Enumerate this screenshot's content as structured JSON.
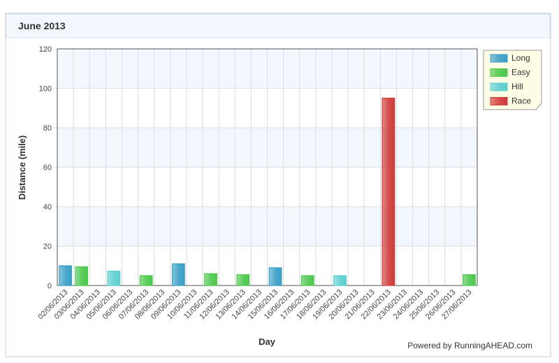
{
  "chart_data": {
    "type": "bar",
    "title": "June 2013",
    "credit": "Powered by RunningAHEAD.com",
    "x_label": "Day",
    "y_label": "Distance (mile)",
    "categories": [
      "02/06/2013",
      "03/06/2013",
      "04/06/2013",
      "05/06/2013",
      "06/06/2013",
      "07/06/2013",
      "08/06/2013",
      "09/06/2013",
      "10/06/2013",
      "11/06/2013",
      "12/06/2013",
      "13/06/2013",
      "14/06/2013",
      "15/06/2013",
      "16/06/2013",
      "17/06/2013",
      "18/06/2013",
      "19/06/2013",
      "20/06/2013",
      "21/06/2013",
      "22/06/2013",
      "23/06/2013",
      "24/06/2013",
      "25/06/2013",
      "26/06/2013",
      "27/06/2013"
    ],
    "series": [
      {
        "name": "Long",
        "color": "#3a9fc8",
        "values": [
          10,
          null,
          null,
          null,
          null,
          null,
          null,
          11,
          null,
          null,
          null,
          null,
          null,
          9,
          null,
          null,
          null,
          null,
          null,
          null,
          null,
          null,
          null,
          null,
          null,
          null
        ]
      },
      {
        "name": "Easy",
        "color": "#4cc84c",
        "values": [
          null,
          9.5,
          null,
          null,
          null,
          5,
          null,
          null,
          null,
          6,
          null,
          5.5,
          null,
          null,
          null,
          5,
          null,
          null,
          null,
          null,
          null,
          null,
          null,
          null,
          null,
          5.5
        ]
      },
      {
        "name": "Hill",
        "color": "#5ccfd0",
        "values": [
          null,
          null,
          null,
          7.3,
          null,
          null,
          null,
          null,
          null,
          null,
          null,
          null,
          null,
          null,
          null,
          null,
          null,
          5,
          null,
          null,
          null,
          null,
          null,
          null,
          null,
          null
        ]
      },
      {
        "name": "Race",
        "color": "#cf3b3b",
        "values": [
          null,
          null,
          null,
          null,
          null,
          null,
          null,
          null,
          null,
          null,
          null,
          null,
          null,
          null,
          null,
          null,
          null,
          null,
          null,
          null,
          95,
          null,
          null,
          null,
          null,
          null
        ]
      }
    ],
    "ylim": [
      0,
      120
    ],
    "yticks": [
      0,
      20,
      40,
      60,
      80,
      100,
      120
    ],
    "grid": true,
    "legend": "top-right"
  }
}
